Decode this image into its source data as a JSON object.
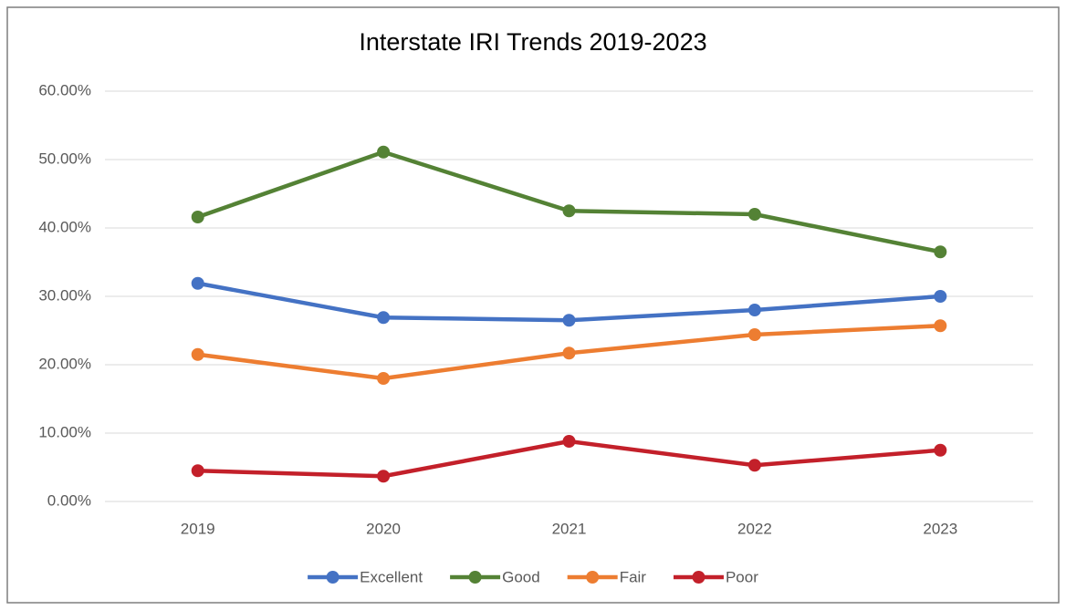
{
  "chart_data": {
    "type": "line",
    "title": "Interstate IRI Trends 2019-2023",
    "categories": [
      "2019",
      "2020",
      "2021",
      "2022",
      "2023"
    ],
    "series": [
      {
        "name": "Excellent",
        "color": "#4472c4",
        "values": [
          31.9,
          26.9,
          26.5,
          28.0,
          30.0
        ]
      },
      {
        "name": "Good",
        "color": "#548235",
        "values": [
          41.6,
          51.1,
          42.5,
          42.0,
          36.5
        ]
      },
      {
        "name": "Fair",
        "color": "#ed7d31",
        "values": [
          21.5,
          18.0,
          21.7,
          24.4,
          25.7
        ]
      },
      {
        "name": "Poor",
        "color": "#c3202a",
        "values": [
          4.5,
          3.7,
          8.8,
          5.3,
          7.5
        ]
      }
    ],
    "ylim": [
      0,
      60
    ],
    "yticks": [
      {
        "value": 0,
        "label": "0.00%"
      },
      {
        "value": 10,
        "label": "10.00%"
      },
      {
        "value": 20,
        "label": "20.00%"
      },
      {
        "value": 30,
        "label": "30.00%"
      },
      {
        "value": 40,
        "label": "40.00%"
      },
      {
        "value": 50,
        "label": "50.00%"
      },
      {
        "value": 60,
        "label": "60.00%"
      }
    ],
    "grid": true,
    "legend": "bottom"
  }
}
